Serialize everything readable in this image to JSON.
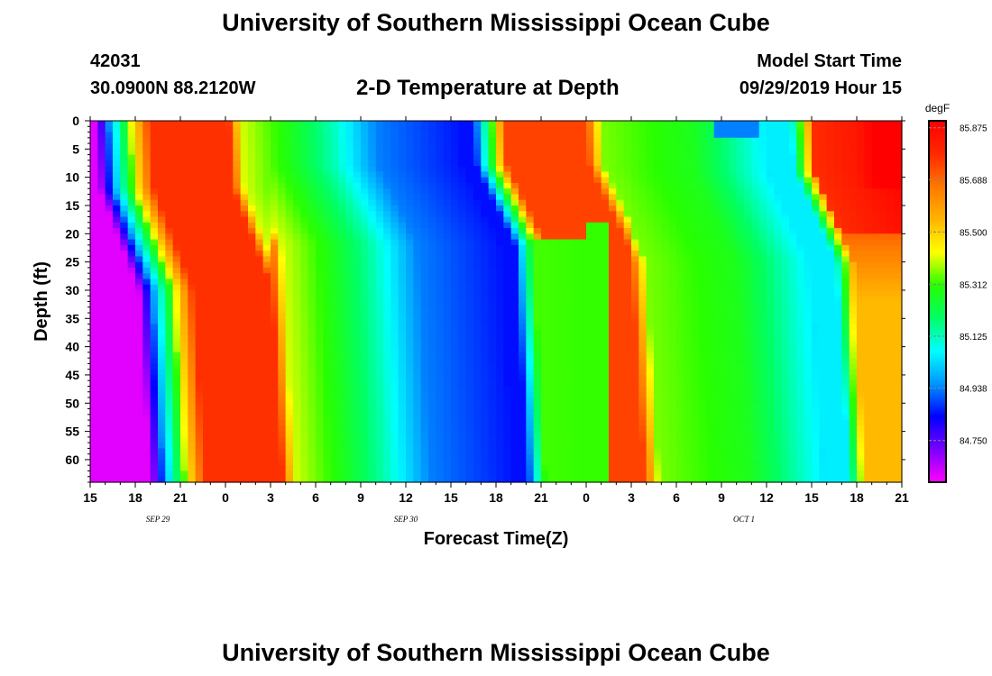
{
  "header": {
    "title": "University of Southern Mississippi Ocean Cube",
    "station_id": "42031",
    "location": "30.0900N 88.2120W",
    "plot_title": "2-D Temperature at Depth",
    "start_label": "Model Start Time",
    "start_value": "09/29/2019 Hour 15"
  },
  "footer": {
    "title": "University of Southern Mississippi Ocean Cube"
  },
  "chart_data": {
    "type": "heatmap",
    "xlabel": "Forecast Time(Z)",
    "ylabel": "Depth (ft)",
    "x_range_hours": [
      0,
      54
    ],
    "y_range_ft": [
      0,
      64
    ],
    "x_tick_labels": [
      "15",
      "18",
      "21",
      "0",
      "3",
      "6",
      "9",
      "12",
      "15",
      "18",
      "21",
      "0",
      "3",
      "6",
      "9",
      "12",
      "15",
      "18",
      "21"
    ],
    "y_tick_labels": [
      "0",
      "5",
      "10",
      "15",
      "20",
      "25",
      "30",
      "35",
      "40",
      "45",
      "50",
      "55",
      "60"
    ],
    "date_labels": [
      {
        "text": "SEP 29",
        "hour": 4.5
      },
      {
        "text": "SEP 30",
        "hour": 21
      },
      {
        "text": "OCT 1",
        "hour": 43.5
      }
    ],
    "colorbar": {
      "unit": "degF",
      "tick_labels": [
        "85.875",
        "85.688",
        "85.500",
        "85.312",
        "85.125",
        "84.938",
        "84.750"
      ],
      "range": [
        84.6,
        85.9
      ],
      "colors": [
        "#ff00ff",
        "#7a00ff",
        "#0000ff",
        "#0096ff",
        "#00ffff",
        "#00ff64",
        "#28ff00",
        "#ffff00",
        "#ffb400",
        "#ff7800",
        "#ff2800",
        "#ff0000"
      ]
    }
  }
}
